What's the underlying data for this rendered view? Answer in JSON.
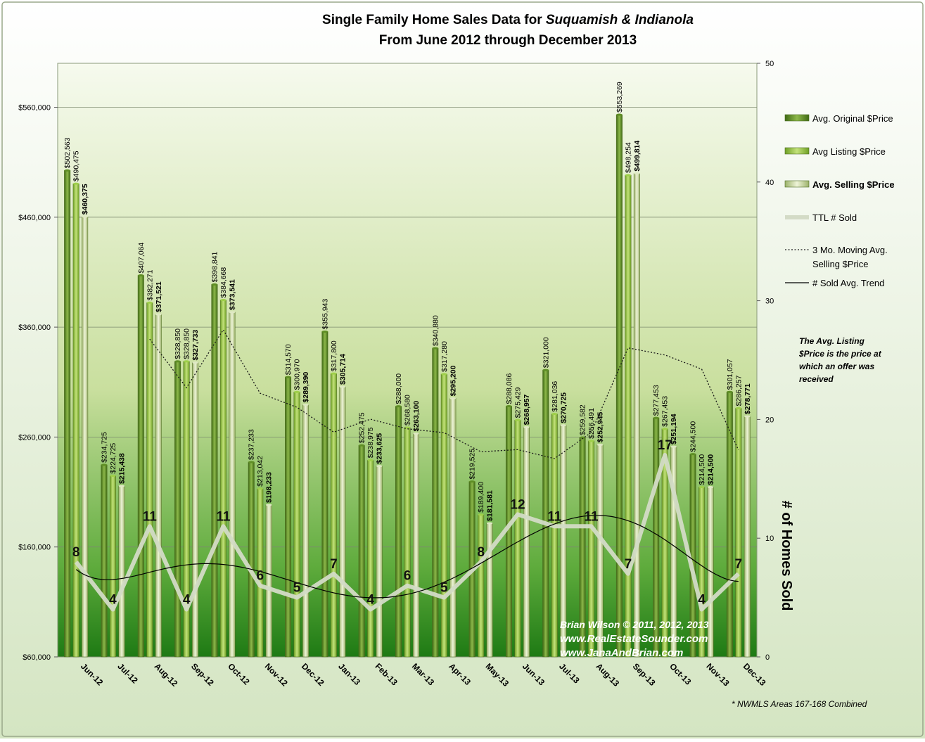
{
  "chart_data": {
    "type": "bar",
    "title_line1_pre": "Single Family Home Sales Data for ",
    "title_line1_italic": "Suquamish & Indianola",
    "title_line2": "From June 2012 through December 2013",
    "categories": [
      "Jun-12",
      "Jul-12",
      "Aug-12",
      "Sep-12",
      "Oct-12",
      "Nov-12",
      "Dec-12",
      "Jan-13",
      "Feb-13",
      "Mar-13",
      "Apr-13",
      "May-13",
      "Jun-13",
      "Jul-13",
      "Aug-13",
      "Sep-13",
      "Oct-13",
      "Nov-13",
      "Dec-13"
    ],
    "series": [
      {
        "name": "Avg. Original $Price",
        "axis": "left",
        "values": [
          502563,
          234725,
          407064,
          328850,
          398841,
          237233,
          314570,
          355943,
          252475,
          288000,
          340880,
          219525,
          288086,
          321000,
          259582,
          553269,
          277453,
          244500,
          301057
        ],
        "labels": [
          "$502,563",
          "$234,725",
          "$407,064",
          "$328,850",
          "$398,841",
          "$237,233",
          "$314,570",
          "$355,943",
          "$252,475",
          "$288,000",
          "$340,880",
          "$219,525",
          "$288,086",
          "$321,000",
          "$259,582",
          "$553,269",
          "$277,453",
          "$244,500",
          "$301,057"
        ]
      },
      {
        "name": "Avg Listing $Price",
        "axis": "left",
        "values": [
          490475,
          224725,
          382271,
          328850,
          384668,
          213042,
          300970,
          317800,
          238975,
          268580,
          317280,
          189400,
          275429,
          281036,
          256491,
          498254,
          267453,
          214500,
          286257
        ],
        "labels": [
          "$490,475",
          "$224,725",
          "$382,271",
          "$328,850",
          "$384,668",
          "$213,042",
          "$300,970",
          "$317,800",
          "$238,975",
          "$268,580",
          "$317,280",
          "$189,400",
          "$275,429",
          "$281,036",
          "$256,491",
          "$498,254",
          "$267,453",
          "$214,500",
          "$286,257"
        ]
      },
      {
        "name": "Avg. Selling $Price",
        "axis": "left",
        "values": [
          460375,
          215438,
          371521,
          327733,
          373541,
          198233,
          289390,
          305714,
          233625,
          263100,
          295200,
          181581,
          268957,
          270725,
          252945,
          499814,
          251194,
          214500,
          278771
        ],
        "labels": [
          "$460,375",
          "$215,438",
          "$371,521",
          "$327,733",
          "$373,541",
          "$198,233",
          "$289,390",
          "$305,714",
          "$233,625",
          "$263,100",
          "$295,200",
          "$181,581",
          "$268,957",
          "$270,725",
          "$252,945",
          "$499,814",
          "$251,194",
          "$214,500",
          "$278,771"
        ]
      },
      {
        "name": "TTL # Sold",
        "axis": "right",
        "type": "line",
        "values": [
          8,
          4,
          11,
          4,
          11,
          6,
          5,
          7,
          4,
          6,
          5,
          8,
          12,
          11,
          11,
          7,
          17,
          4,
          7
        ]
      },
      {
        "name": "3 Mo. Moving Avg. Selling $Price",
        "axis": "left",
        "type": "line",
        "style": "dotted",
        "values": [
          null,
          null,
          349111,
          304897,
          357598,
          299836,
          287054,
          264446,
          276243,
          267480,
          263975,
          246627,
          248579,
          240421,
          264209,
          341161,
          334651,
          321836,
          248155
        ]
      },
      {
        "name": "# Sold Avg. Trend",
        "axis": "right",
        "type": "line",
        "style": "trend"
      }
    ],
    "yleft": {
      "min": 60000,
      "max": 600000,
      "ticks": [
        60000,
        160000,
        260000,
        360000,
        460000,
        560000
      ],
      "tick_labels": [
        "$60,000",
        "$160,000",
        "$260,000",
        "$360,000",
        "$460,000",
        "$560,000"
      ]
    },
    "yright": {
      "min": 0,
      "max": 50,
      "ticks": [
        0,
        10,
        20,
        30,
        40,
        50
      ],
      "label": "# of Homes Sold"
    },
    "legend": {
      "position": "right",
      "entries": [
        "Avg. Original $Price",
        "Avg Listing $Price",
        "Avg. Selling $Price",
        "TTL # Sold",
        "3 Mo. Moving Avg.",
        "Selling $Price",
        "# Sold Avg. Trend"
      ]
    },
    "note": [
      "The Avg. Listing",
      "$Price is the price at",
      "which an offer was",
      "received"
    ],
    "credit": [
      "Brian Wilson  © 2011, 2012, 2013",
      "www.RealEstateSounder.com",
      "www.JanaAndBrian.com"
    ],
    "footnote": "* NWMLS Areas 167-168  Combined",
    "colors": {
      "original": "#5f8f25",
      "listing": "#8fc13a",
      "selling": "#c5d79c",
      "sold_line": "#d0d8c2",
      "plot_top": "#f3f8ea",
      "plot_bottom": "#1e7a14"
    }
  }
}
